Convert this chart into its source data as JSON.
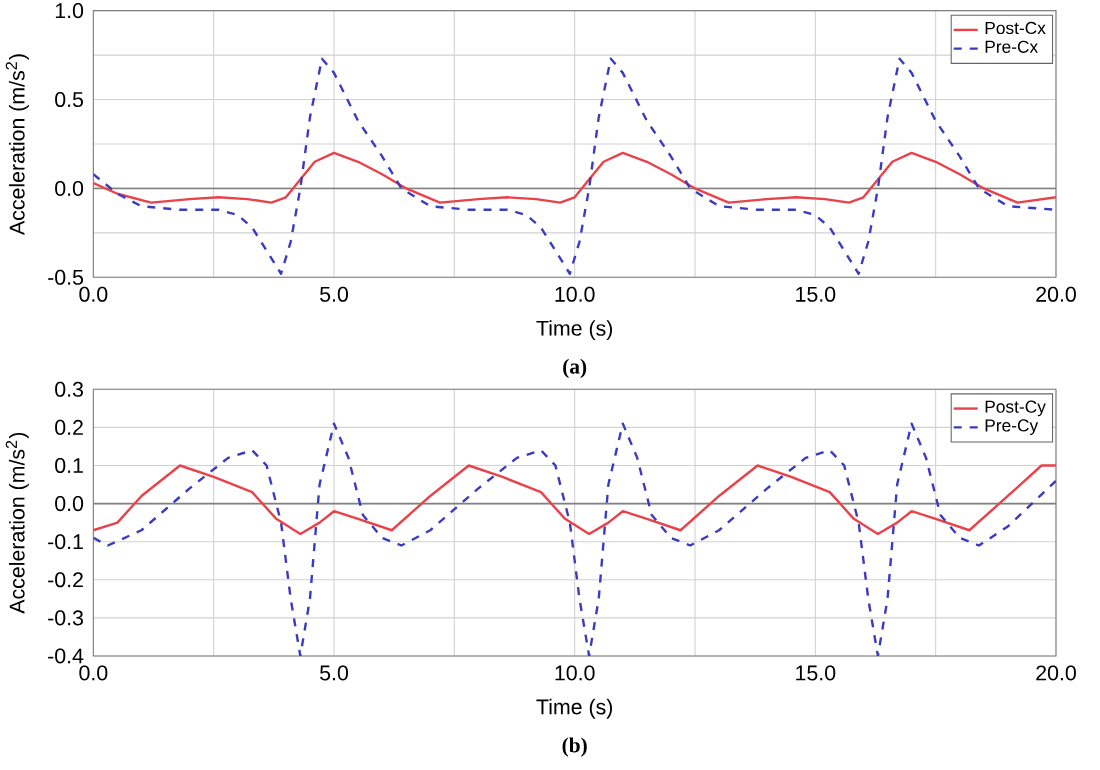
{
  "chart_data": [
    {
      "type": "line",
      "xlabel": "Time (s)",
      "ylabel": "Acceleration (m/s$^{2}$)",
      "annotations": [
        "(a)"
      ],
      "xlim": [
        0,
        20
      ],
      "ylim": [
        -0.5,
        1.0
      ],
      "xticks": [
        {
          "value": 0,
          "label": "0.0"
        },
        {
          "value": 2.5,
          "label": null
        },
        {
          "value": 5,
          "label": "5.0"
        },
        {
          "value": 7.5,
          "label": null
        },
        {
          "value": 10,
          "label": "10.0"
        },
        {
          "value": 12.5,
          "label": null
        },
        {
          "value": 15,
          "label": "15.0"
        },
        {
          "value": 17.5,
          "label": null
        },
        {
          "value": 20,
          "label": "20.0"
        }
      ],
      "yticks": [
        -0.5,
        {
          "value": -0.25,
          "label": null
        },
        {
          "value": 0,
          "label": "0.0"
        },
        {
          "value": 0.25,
          "label": null
        },
        0.5,
        {
          "value": 0.75,
          "label": null
        },
        {
          "value": 1,
          "label": "1.0"
        }
      ],
      "grid": true,
      "legend": "top right",
      "ref_lines": [
        {
          "axis": "y",
          "value": 0,
          "color": "#808080"
        }
      ],
      "series": [
        {
          "name": "Post-Cx",
          "color": "#e8424a",
          "line_style": "solid",
          "x": [
            0,
            0.5,
            1.2,
            2.0,
            2.6,
            3.2,
            3.7,
            4.0,
            4.3,
            4.6,
            5.0,
            5.5,
            6.0,
            6.5,
            7.2,
            8.0,
            8.6,
            9.2,
            9.7,
            10.0,
            10.3,
            10.6,
            11.0,
            11.5,
            12.0,
            12.5,
            13.2,
            14.0,
            14.6,
            15.2,
            15.7,
            16.0,
            16.3,
            16.6,
            17.0,
            17.5,
            18.0,
            18.5,
            19.2,
            20.0
          ],
          "values": [
            0.03,
            -0.03,
            -0.08,
            -0.06,
            -0.05,
            -0.06,
            -0.08,
            -0.05,
            0.05,
            0.15,
            0.2,
            0.15,
            0.08,
            0.0,
            -0.08,
            -0.06,
            -0.05,
            -0.06,
            -0.08,
            -0.05,
            0.05,
            0.15,
            0.2,
            0.15,
            0.08,
            0.0,
            -0.08,
            -0.06,
            -0.05,
            -0.06,
            -0.08,
            -0.05,
            0.05,
            0.15,
            0.2,
            0.15,
            0.08,
            0.0,
            -0.08,
            -0.05
          ]
        },
        {
          "name": "Pre-Cx",
          "color": "#3b3bc0",
          "line_style": "dashed",
          "x": [
            0,
            0.5,
            1.0,
            1.8,
            2.6,
            3.0,
            3.3,
            3.6,
            3.9,
            4.1,
            4.3,
            4.5,
            4.75,
            5.0,
            5.5,
            6.0,
            6.4,
            7.0,
            7.8,
            8.6,
            9.0,
            9.3,
            9.6,
            9.9,
            10.1,
            10.3,
            10.5,
            10.75,
            11.0,
            11.5,
            12.0,
            12.4,
            13.0,
            13.8,
            14.6,
            15.0,
            15.3,
            15.6,
            15.9,
            16.1,
            16.3,
            16.5,
            16.75,
            17.0,
            17.5,
            18.0,
            18.4,
            19.0,
            20.0
          ],
          "values": [
            0.08,
            -0.03,
            -0.1,
            -0.12,
            -0.12,
            -0.15,
            -0.22,
            -0.35,
            -0.48,
            -0.3,
            0.0,
            0.4,
            0.73,
            0.65,
            0.38,
            0.18,
            0.0,
            -0.1,
            -0.12,
            -0.12,
            -0.15,
            -0.22,
            -0.35,
            -0.48,
            -0.3,
            0.0,
            0.4,
            0.73,
            0.65,
            0.38,
            0.18,
            0.0,
            -0.1,
            -0.12,
            -0.12,
            -0.15,
            -0.22,
            -0.35,
            -0.48,
            -0.3,
            0.0,
            0.4,
            0.73,
            0.65,
            0.38,
            0.18,
            0.0,
            -0.1,
            -0.12
          ]
        }
      ]
    },
    {
      "type": "line",
      "xlabel": "Time (s)",
      "ylabel": "Acceleration (m/s$^{2}$)",
      "annotations": [
        "(b)"
      ],
      "xlim": [
        0,
        20
      ],
      "ylim": [
        -0.4,
        0.3
      ],
      "xticks": [
        {
          "value": 0,
          "label": "0.0"
        },
        {
          "value": 2.5,
          "label": null
        },
        {
          "value": 5,
          "label": "5.0"
        },
        {
          "value": 7.5,
          "label": null
        },
        {
          "value": 10,
          "label": "10.0"
        },
        {
          "value": 12.5,
          "label": null
        },
        {
          "value": 15,
          "label": "15.0"
        },
        {
          "value": 17.5,
          "label": null
        },
        {
          "value": 20,
          "label": "20.0"
        }
      ],
      "yticks": [
        -0.4,
        -0.3,
        -0.2,
        -0.1,
        {
          "value": 0,
          "label": "0.0"
        },
        0.1,
        0.2,
        0.3
      ],
      "grid": true,
      "legend": "top right",
      "ref_lines": [
        {
          "axis": "y",
          "value": 0,
          "color": "#808080"
        }
      ],
      "series": [
        {
          "name": "Post-Cy",
          "color": "#e8424a",
          "line_style": "solid",
          "x": [
            0,
            0.5,
            1.0,
            1.8,
            2.5,
            3.3,
            3.8,
            4.3,
            4.7,
            5.0,
            5.5,
            6.2,
            7.0,
            7.8,
            8.5,
            9.3,
            9.8,
            10.3,
            10.7,
            11.0,
            11.5,
            12.2,
            13.0,
            13.8,
            14.5,
            15.3,
            15.8,
            16.3,
            16.7,
            17.0,
            17.5,
            18.2,
            19.0,
            19.7,
            20.0
          ],
          "values": [
            -0.07,
            -0.05,
            0.02,
            0.1,
            0.07,
            0.03,
            -0.04,
            -0.08,
            -0.05,
            -0.02,
            -0.04,
            -0.07,
            0.02,
            0.1,
            0.07,
            0.03,
            -0.04,
            -0.08,
            -0.05,
            -0.02,
            -0.04,
            -0.07,
            0.02,
            0.1,
            0.07,
            0.03,
            -0.04,
            -0.08,
            -0.05,
            -0.02,
            -0.04,
            -0.07,
            0.02,
            0.1,
            0.1
          ]
        },
        {
          "name": "Pre-Cy",
          "color": "#3b3bc0",
          "line_style": "dashed",
          "x": [
            0,
            0.3,
            1.0,
            2.0,
            2.8,
            3.3,
            3.6,
            3.9,
            4.1,
            4.3,
            4.5,
            4.7,
            5.0,
            5.3,
            5.6,
            6.0,
            6.4,
            7.0,
            8.0,
            8.8,
            9.3,
            9.6,
            9.9,
            10.1,
            10.3,
            10.5,
            10.7,
            11.0,
            11.3,
            11.6,
            12.0,
            12.4,
            13.0,
            14.0,
            14.8,
            15.3,
            15.6,
            15.9,
            16.1,
            16.3,
            16.5,
            16.7,
            17.0,
            17.3,
            17.6,
            18.0,
            18.4,
            19.0,
            20.0
          ],
          "values": [
            -0.09,
            -0.11,
            -0.07,
            0.04,
            0.12,
            0.14,
            0.1,
            -0.05,
            -0.25,
            -0.4,
            -0.25,
            0.05,
            0.21,
            0.12,
            -0.03,
            -0.09,
            -0.11,
            -0.07,
            0.04,
            0.12,
            0.14,
            0.1,
            -0.05,
            -0.25,
            -0.4,
            -0.25,
            0.05,
            0.21,
            0.12,
            -0.03,
            -0.09,
            -0.11,
            -0.07,
            0.04,
            0.12,
            0.14,
            0.1,
            -0.05,
            -0.25,
            -0.4,
            -0.25,
            0.05,
            0.21,
            0.12,
            -0.03,
            -0.09,
            -0.11,
            -0.06,
            0.06
          ]
        }
      ]
    }
  ]
}
